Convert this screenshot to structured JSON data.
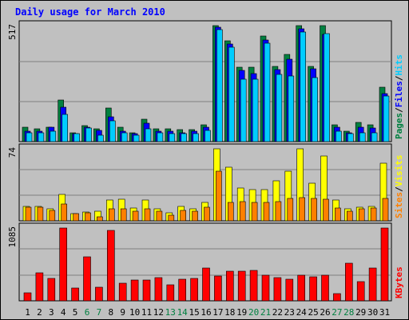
{
  "title": "Daily usage for March 2010",
  "days": [
    "1",
    "2",
    "3",
    "4",
    "5",
    "6",
    "7",
    "8",
    "9",
    "10",
    "11",
    "12",
    "13",
    "14",
    "15",
    "16",
    "17",
    "18",
    "19",
    "20",
    "21",
    "22",
    "23",
    "24",
    "25",
    "26",
    "27",
    "28",
    "29",
    "30",
    "31"
  ],
  "weekend_days": [
    "6",
    "7",
    "13",
    "14",
    "20",
    "21",
    "27",
    "28"
  ],
  "colors": {
    "hits": "#00ccff",
    "files": "#0000ff",
    "pages": "#008040",
    "visits": "#ffff00",
    "sites": "#ff8000",
    "kbytes": "#ff0000",
    "title": "#0000ff",
    "weekday_label": "#000000",
    "weekend_label": "#008040",
    "grid": "#808080",
    "panel_bg": "#c0c0c0"
  },
  "chart_data": [
    {
      "type": "bar",
      "categories": [
        "1",
        "2",
        "3",
        "4",
        "5",
        "6",
        "7",
        "8",
        "9",
        "10",
        "11",
        "12",
        "13",
        "14",
        "15",
        "16",
        "17",
        "18",
        "19",
        "20",
        "21",
        "22",
        "23",
        "24",
        "25",
        "26",
        "27",
        "28",
        "29",
        "30",
        "31"
      ],
      "ymax_label": "517",
      "ylim": [
        0,
        517
      ],
      "grid": true,
      "legend_labels": [
        "Pages",
        "/",
        "Files",
        "/",
        "Hits"
      ],
      "series": [
        {
          "name": "Pages",
          "values": [
            64,
            56,
            64,
            187,
            39,
            73,
            56,
            150,
            64,
            41,
            101,
            56,
            56,
            52,
            52,
            75,
            517,
            449,
            333,
            333,
            472,
            336,
            389,
            517,
            336,
            517,
            75,
            48,
            86,
            75,
            243
          ]
        },
        {
          "name": "Files",
          "values": [
            45,
            45,
            64,
            153,
            37,
            64,
            49,
            112,
            45,
            37,
            82,
            45,
            45,
            41,
            45,
            64,
            509,
            434,
            318,
            303,
            453,
            321,
            367,
            502,
            325,
            479,
            64,
            41,
            64,
            60,
            213
          ]
        },
        {
          "name": "Hits",
          "values": [
            41,
            41,
            45,
            120,
            34,
            60,
            30,
            93,
            41,
            30,
            56,
            41,
            37,
            34,
            34,
            49,
            498,
            419,
            277,
            277,
            438,
            299,
            292,
            487,
            284,
            483,
            45,
            34,
            41,
            41,
            202
          ]
        }
      ]
    },
    {
      "type": "bar",
      "categories": [
        "1",
        "2",
        "3",
        "4",
        "5",
        "6",
        "7",
        "8",
        "9",
        "10",
        "11",
        "12",
        "13",
        "14",
        "15",
        "16",
        "17",
        "18",
        "19",
        "20",
        "21",
        "22",
        "23",
        "24",
        "25",
        "26",
        "27",
        "28",
        "29",
        "30",
        "31"
      ],
      "ymax_label": "74",
      "ylim": [
        0,
        74
      ],
      "grid": true,
      "legend_labels": [
        "Sites",
        "/",
        "Visits"
      ],
      "series": [
        {
          "name": "Visits",
          "values": [
            15,
            15,
            12,
            27,
            7,
            9,
            10,
            21,
            22,
            13,
            21,
            12,
            8,
            15,
            12,
            19,
            74,
            55,
            34,
            32,
            32,
            41,
            51,
            74,
            39,
            67,
            21,
            12,
            14,
            15,
            59
          ]
        },
        {
          "name": "Sites",
          "values": [
            14,
            14,
            11,
            17,
            7,
            8,
            4,
            12,
            12,
            10,
            12,
            10,
            6,
            11,
            10,
            14,
            51,
            19,
            20,
            19,
            19,
            20,
            23,
            24,
            23,
            22,
            13,
            10,
            12,
            13,
            23
          ]
        }
      ]
    },
    {
      "type": "bar",
      "categories": [
        "1",
        "2",
        "3",
        "4",
        "5",
        "6",
        "7",
        "8",
        "9",
        "10",
        "11",
        "12",
        "13",
        "14",
        "15",
        "16",
        "17",
        "18",
        "19",
        "20",
        "21",
        "22",
        "23",
        "24",
        "25",
        "26",
        "27",
        "28",
        "29",
        "30",
        "31"
      ],
      "ymax_label": "1085",
      "ylim": [
        0,
        1085
      ],
      "grid": true,
      "legend_labels": [
        "KBytes"
      ],
      "series": [
        {
          "name": "KBytes",
          "values": [
            122,
            413,
            331,
            1085,
            191,
            654,
            207,
            1046,
            264,
            312,
            312,
            346,
            234,
            323,
            335,
            493,
            367,
            444,
            444,
            455,
            376,
            344,
            323,
            378,
            355,
            378,
            112,
            558,
            283,
            493,
            1085
          ]
        }
      ]
    }
  ]
}
